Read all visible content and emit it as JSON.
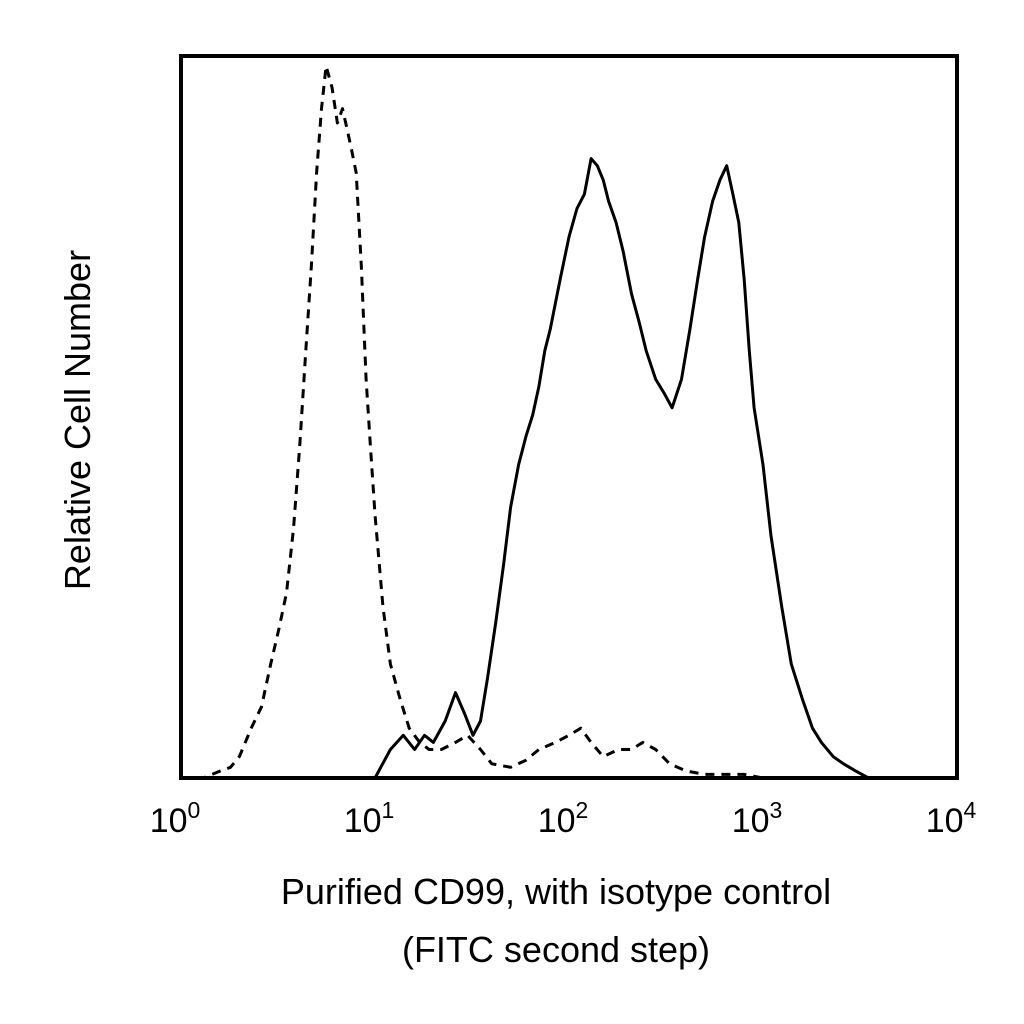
{
  "chart_data": {
    "type": "line",
    "title": "",
    "xlabel_lines": [
      "Purified CD99, with isotype control",
      "(FITC second step)"
    ],
    "ylabel": "Relative Cell Number",
    "x_scale": "log",
    "xlim": [
      1,
      10000
    ],
    "ylim": [
      0,
      100
    ],
    "grid": false,
    "legend": "none",
    "x_ticks": [
      {
        "base": "10",
        "exp": "0",
        "value": 1
      },
      {
        "base": "10",
        "exp": "1",
        "value": 10
      },
      {
        "base": "10",
        "exp": "2",
        "value": 100
      },
      {
        "base": "10",
        "exp": "3",
        "value": 1000
      },
      {
        "base": "10",
        "exp": "4",
        "value": 10000
      }
    ],
    "series": [
      {
        "style": "dashed",
        "color": "#000000",
        "x": [
          1.0,
          1.3,
          1.6,
          1.8,
          2.0,
          2.3,
          2.6,
          2.9,
          3.2,
          3.5,
          3.8,
          4.1,
          4.4,
          4.7,
          5.0,
          5.3,
          5.6,
          6.0,
          6.4,
          6.8,
          7.2,
          7.6,
          8.0,
          8.5,
          9.0,
          9.5,
          10.0,
          11.0,
          12.0,
          13.5,
          15.0,
          17.0,
          19.0,
          22.0,
          26.0,
          30.0,
          35.0,
          40.0,
          50.0,
          60.0,
          70.0,
          85.0,
          100.0,
          115.0,
          130.0,
          150.0,
          180.0,
          210.0,
          240.0,
          280.0,
          330.0,
          400.0,
          500.0,
          650.0,
          800.0,
          1000.0,
          2000.0,
          4000.0,
          10000.0
        ],
        "y": [
          0,
          0,
          1,
          1.5,
          3,
          7,
          10,
          16,
          21,
          26,
          35,
          47,
          60,
          72,
          85,
          94,
          100,
          97,
          92,
          94,
          91,
          88,
          85,
          72,
          56,
          46,
          37,
          24,
          16,
          11,
          7,
          5,
          4,
          4,
          5,
          6,
          4,
          2,
          1.5,
          2.5,
          4,
          5,
          6,
          7,
          5,
          3,
          4,
          4,
          5,
          4,
          2,
          1,
          0.5,
          0.5,
          0.5,
          0,
          0,
          0,
          0
        ]
      },
      {
        "style": "solid",
        "color": "#000000",
        "x": [
          1.0,
          5.0,
          10.0,
          12.0,
          14.0,
          16.0,
          18.0,
          20.0,
          23.0,
          26.0,
          29.0,
          32.0,
          35.0,
          38.0,
          42.0,
          46.0,
          50.0,
          55.0,
          60.0,
          65.0,
          70.0,
          75.0,
          80.0,
          90.0,
          100.0,
          110.0,
          120.0,
          130.0,
          140.0,
          150.0,
          160.0,
          175.0,
          190.0,
          210.0,
          230.0,
          250.0,
          280.0,
          310.0,
          340.0,
          380.0,
          420.0,
          460.0,
          500.0,
          550.0,
          600.0,
          650.0,
          700.0,
          750.0,
          800.0,
          850.0,
          900.0,
          1000.0,
          1100.0,
          1250.0,
          1400.0,
          1600.0,
          1800.0,
          2000.0,
          2300.0,
          2600.0,
          3000.0,
          3500.0,
          10000.0
        ],
        "y": [
          0,
          0,
          0,
          4,
          6,
          4,
          6,
          5,
          8,
          12,
          9,
          6,
          8,
          14,
          22,
          30,
          38,
          44,
          48,
          51,
          55,
          60,
          63,
          70,
          76,
          80,
          82,
          87,
          86,
          84,
          81,
          78,
          74,
          68,
          64,
          60,
          56,
          54,
          52,
          56,
          63,
          70,
          76,
          81,
          84,
          86,
          82,
          78,
          70,
          60,
          52,
          44,
          34,
          24,
          16,
          11,
          7,
          5,
          3,
          2,
          1,
          0,
          0
        ]
      }
    ]
  }
}
